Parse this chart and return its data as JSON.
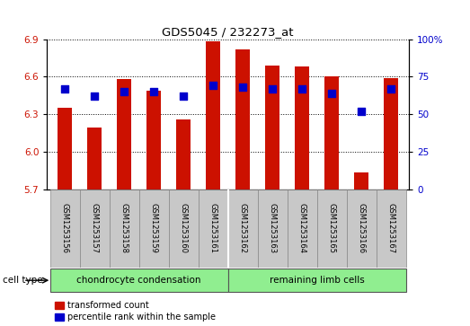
{
  "title": "GDS5045 / 232273_at",
  "samples": [
    "GSM1253156",
    "GSM1253157",
    "GSM1253158",
    "GSM1253159",
    "GSM1253160",
    "GSM1253161",
    "GSM1253162",
    "GSM1253163",
    "GSM1253164",
    "GSM1253165",
    "GSM1253166",
    "GSM1253167"
  ],
  "transformed_count": [
    6.35,
    6.19,
    6.58,
    6.49,
    6.26,
    6.88,
    6.82,
    6.69,
    6.68,
    6.6,
    5.83,
    6.59
  ],
  "percentile_rank": [
    67,
    62,
    65,
    65,
    62,
    69,
    68,
    67,
    67,
    64,
    52,
    67
  ],
  "ylim_left": [
    5.7,
    6.9
  ],
  "ylim_right": [
    0,
    100
  ],
  "yticks_left": [
    5.7,
    6.0,
    6.3,
    6.6,
    6.9
  ],
  "yticks_right": [
    0,
    25,
    50,
    75,
    100
  ],
  "ytick_labels_right": [
    "0",
    "25",
    "50",
    "75",
    "100%"
  ],
  "groups": [
    {
      "label": "chondrocyte condensation",
      "start": 0,
      "end": 5,
      "color": "#90ee90"
    },
    {
      "label": "remaining limb cells",
      "start": 6,
      "end": 11,
      "color": "#90ee90"
    }
  ],
  "bar_color": "#cc1100",
  "dot_color": "#0000cc",
  "bar_width": 0.5,
  "dot_size": 28,
  "legend_items": [
    "transformed count",
    "percentile rank within the sample"
  ],
  "cell_type_label": "cell type",
  "xlabel_color": "#cc1100",
  "ylabel_right_color": "#0000cc",
  "label_bg": "#c8c8c8",
  "group_green": "#90ee90"
}
